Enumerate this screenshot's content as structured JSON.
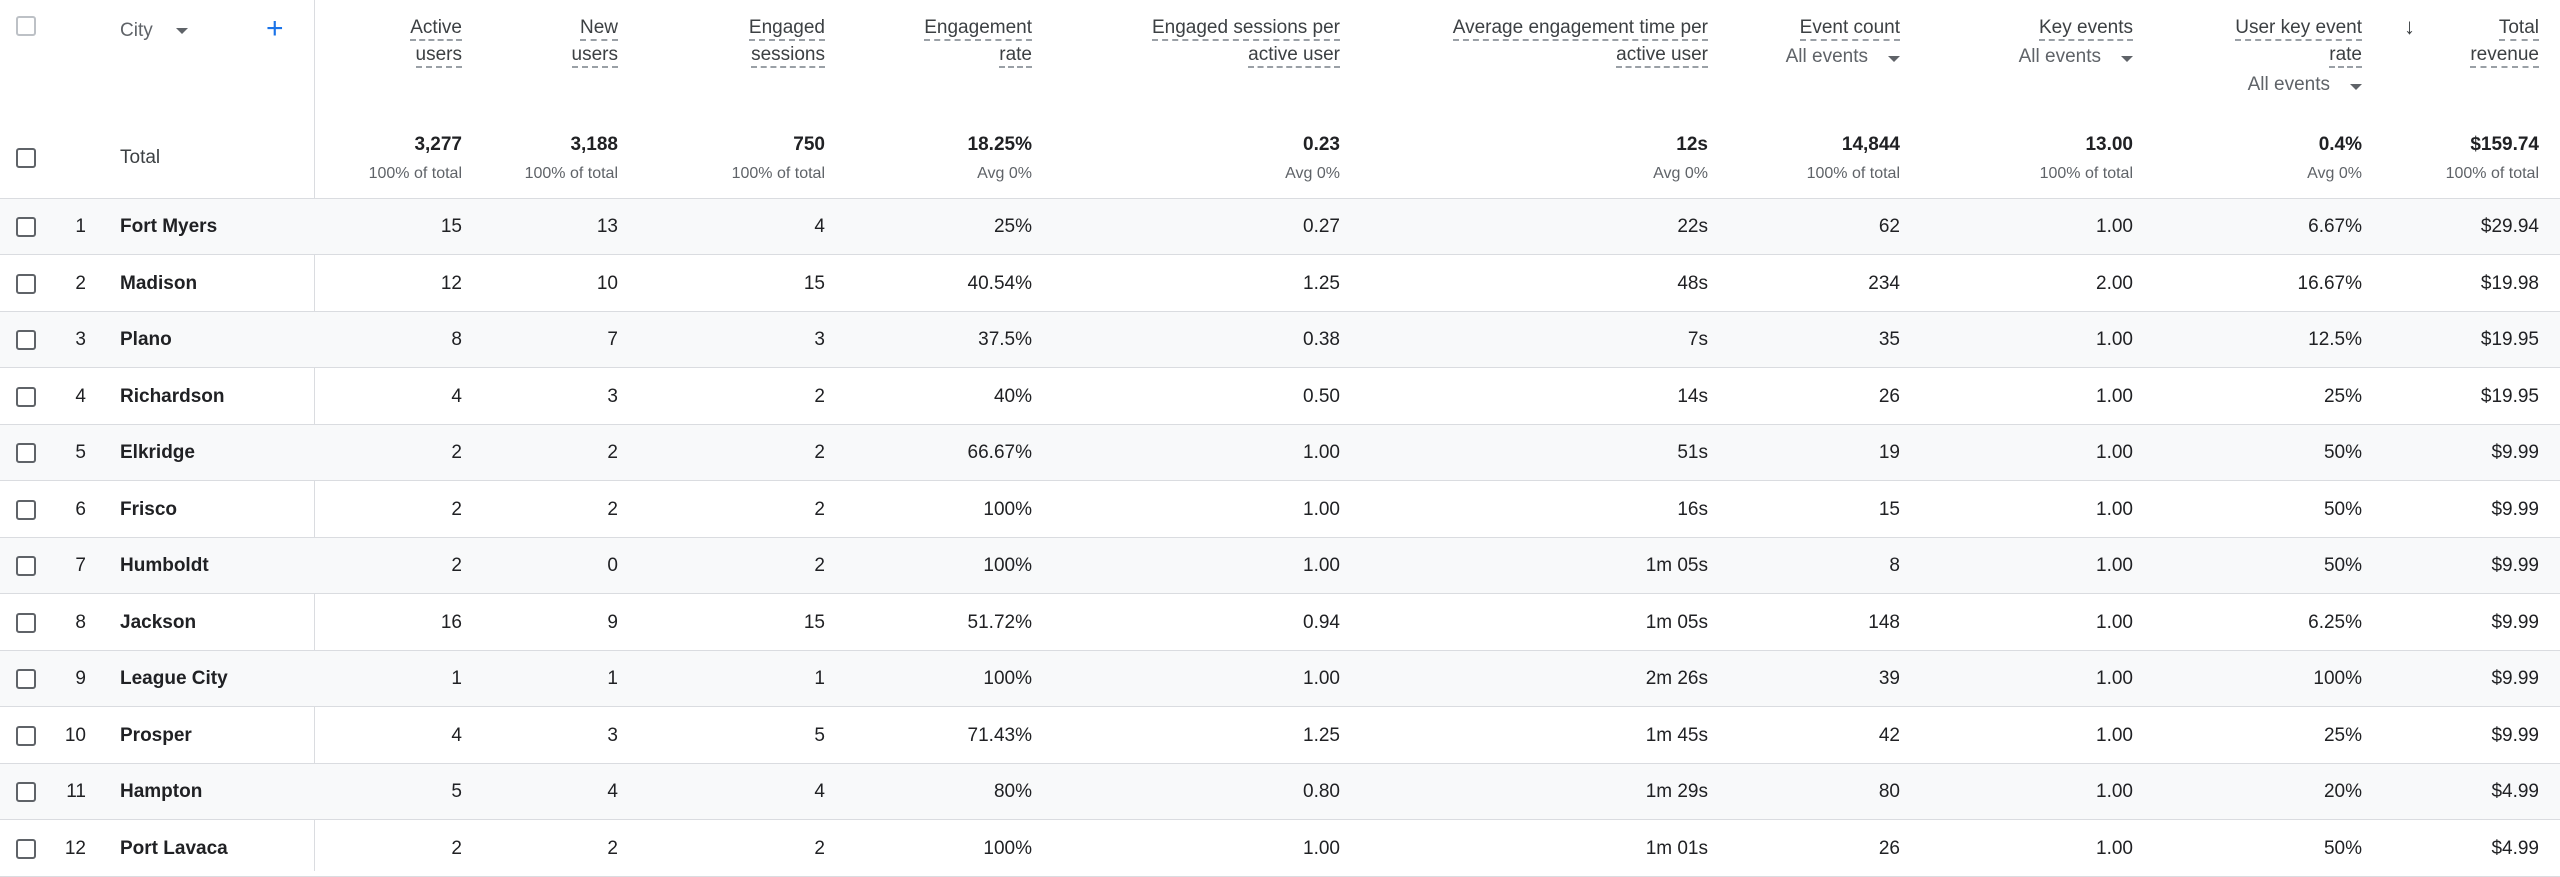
{
  "header": {
    "dimension_label": "City",
    "add_dimension": "+",
    "sort_indicator": "↓",
    "columns": [
      {
        "line1": "Active",
        "line2": "users"
      },
      {
        "line1": "New",
        "line2": "users"
      },
      {
        "line1": "Engaged",
        "line2": "sessions"
      },
      {
        "line1": "Engagement",
        "line2": "rate"
      },
      {
        "line1": "Engaged sessions per",
        "line2": "active user"
      },
      {
        "line1": "Average engagement time per",
        "line2": "active user"
      },
      {
        "line1": "Event count",
        "line2": "",
        "select": "All events"
      },
      {
        "line1": "Key events",
        "line2": "",
        "select": "All events"
      },
      {
        "line1": "User key event",
        "line2": "rate",
        "select": "All events"
      },
      {
        "line1": "Total",
        "line2": "revenue"
      }
    ]
  },
  "totals": {
    "label": "Total",
    "values": [
      "3,277",
      "3,188",
      "750",
      "18.25%",
      "0.23",
      "12s",
      "14,844",
      "13.00",
      "0.4%",
      "$159.74"
    ],
    "subs": [
      "100% of total",
      "100% of total",
      "100% of total",
      "Avg 0%",
      "Avg 0%",
      "Avg 0%",
      "100% of total",
      "100% of total",
      "Avg 0%",
      "100% of total"
    ]
  },
  "rows": [
    {
      "n": "1",
      "city": "Fort Myers",
      "v": [
        "15",
        "13",
        "4",
        "25%",
        "0.27",
        "22s",
        "62",
        "1.00",
        "6.67%",
        "$29.94"
      ]
    },
    {
      "n": "2",
      "city": "Madison",
      "v": [
        "12",
        "10",
        "15",
        "40.54%",
        "1.25",
        "48s",
        "234",
        "2.00",
        "16.67%",
        "$19.98"
      ]
    },
    {
      "n": "3",
      "city": "Plano",
      "v": [
        "8",
        "7",
        "3",
        "37.5%",
        "0.38",
        "7s",
        "35",
        "1.00",
        "12.5%",
        "$19.95"
      ]
    },
    {
      "n": "4",
      "city": "Richardson",
      "v": [
        "4",
        "3",
        "2",
        "40%",
        "0.50",
        "14s",
        "26",
        "1.00",
        "25%",
        "$19.95"
      ]
    },
    {
      "n": "5",
      "city": "Elkridge",
      "v": [
        "2",
        "2",
        "2",
        "66.67%",
        "1.00",
        "51s",
        "19",
        "1.00",
        "50%",
        "$9.99"
      ]
    },
    {
      "n": "6",
      "city": "Frisco",
      "v": [
        "2",
        "2",
        "2",
        "100%",
        "1.00",
        "16s",
        "15",
        "1.00",
        "50%",
        "$9.99"
      ]
    },
    {
      "n": "7",
      "city": "Humboldt",
      "v": [
        "2",
        "0",
        "2",
        "100%",
        "1.00",
        "1m 05s",
        "8",
        "1.00",
        "50%",
        "$9.99"
      ]
    },
    {
      "n": "8",
      "city": "Jackson",
      "v": [
        "16",
        "9",
        "15",
        "51.72%",
        "0.94",
        "1m 05s",
        "148",
        "1.00",
        "6.25%",
        "$9.99"
      ]
    },
    {
      "n": "9",
      "city": "League City",
      "v": [
        "1",
        "1",
        "1",
        "100%",
        "1.00",
        "2m 26s",
        "39",
        "1.00",
        "100%",
        "$9.99"
      ]
    },
    {
      "n": "10",
      "city": "Prosper",
      "v": [
        "4",
        "3",
        "5",
        "71.43%",
        "1.25",
        "1m 45s",
        "42",
        "1.00",
        "25%",
        "$9.99"
      ]
    },
    {
      "n": "11",
      "city": "Hampton",
      "v": [
        "5",
        "4",
        "4",
        "80%",
        "0.80",
        "1m 29s",
        "80",
        "1.00",
        "20%",
        "$4.99"
      ]
    },
    {
      "n": "12",
      "city": "Port Lavaca",
      "v": [
        "2",
        "2",
        "2",
        "100%",
        "1.00",
        "1m 01s",
        "26",
        "1.00",
        "50%",
        "$4.99"
      ]
    }
  ],
  "colors": {
    "accent": "#1a73e8",
    "row_shade": "#f8f9fa",
    "border": "#dadce0"
  }
}
